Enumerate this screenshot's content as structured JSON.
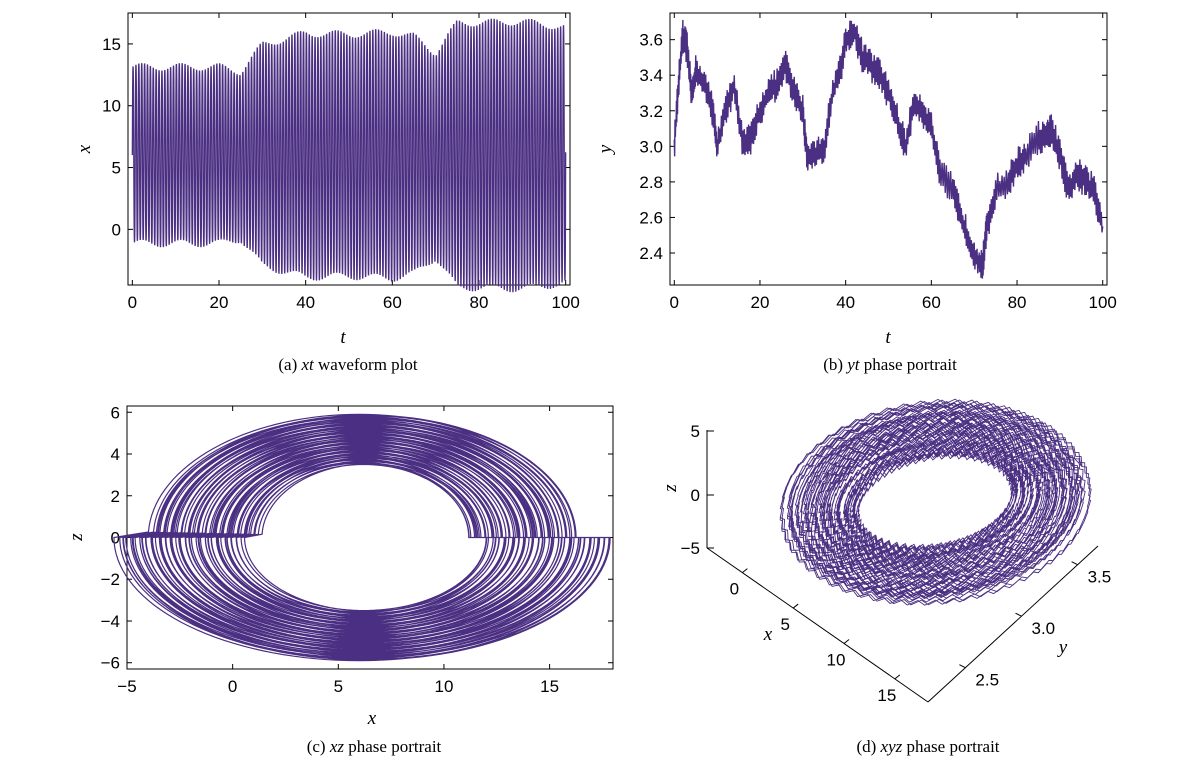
{
  "line_color": "#4b2f82",
  "chart_data": [
    {
      "id": "a",
      "type": "line",
      "caption_prefix": "(a) ",
      "caption_var": "xt",
      "caption_rest": " waveform plot",
      "xlabel": "t",
      "ylabel": "x",
      "xlim": [
        -1,
        101
      ],
      "ylim": [
        -4.5,
        17.5
      ],
      "xticks": [
        0,
        20,
        40,
        60,
        80,
        100
      ],
      "yticks": [
        0,
        5,
        10,
        15
      ],
      "xtick_labels": [
        "0",
        "20",
        "40",
        "60",
        "80",
        "100"
      ],
      "ytick_labels": [
        "0",
        "5",
        "10",
        "15"
      ],
      "signal": {
        "oscillation_center": 6,
        "envelope_t": [
          0,
          10,
          20,
          25,
          30,
          40,
          50,
          60,
          65,
          70,
          75,
          80,
          90,
          100
        ],
        "envelope_amp": [
          7.6,
          7.6,
          7.6,
          7.2,
          9.5,
          10.5,
          10.4,
          10.6,
          10.2,
          8.8,
          11.4,
          11.4,
          11.5,
          11.0
        ],
        "cycles": 150,
        "t_range": [
          0,
          100
        ]
      }
    },
    {
      "id": "b",
      "type": "line",
      "caption_prefix": "(b) ",
      "caption_var": "yt",
      "caption_rest": " phase portrait",
      "xlabel": "t",
      "ylabel": "y",
      "xlim": [
        -1,
        101
      ],
      "ylim": [
        2.22,
        3.75
      ],
      "xticks": [
        0,
        20,
        40,
        60,
        80,
        100
      ],
      "yticks": [
        2.4,
        2.6,
        2.8,
        3.0,
        3.2,
        3.4,
        3.6
      ],
      "xtick_labels": [
        "0",
        "20",
        "40",
        "60",
        "80",
        "100"
      ],
      "ytick_labels": [
        "2.4",
        "2.6",
        "2.8",
        "3.0",
        "3.2",
        "3.4",
        "3.6"
      ],
      "x": [
        0,
        1,
        2,
        3,
        4,
        5,
        7,
        9,
        10,
        12,
        14,
        16,
        18,
        20,
        22,
        24,
        26,
        28,
        30,
        31,
        33,
        35,
        37,
        39,
        40,
        42,
        44,
        46,
        48,
        50,
        52,
        54,
        56,
        58,
        60,
        62,
        65,
        67,
        69,
        71,
        72,
        73,
        75,
        78,
        80,
        82,
        85,
        87,
        88,
        90,
        92,
        94,
        96,
        98,
        100
      ],
      "y": [
        3.0,
        3.35,
        3.62,
        3.55,
        3.3,
        3.42,
        3.35,
        3.2,
        3.0,
        3.2,
        3.35,
        3.0,
        3.05,
        3.2,
        3.3,
        3.35,
        3.45,
        3.3,
        3.2,
        2.95,
        2.95,
        3.0,
        3.3,
        3.45,
        3.6,
        3.65,
        3.5,
        3.45,
        3.4,
        3.3,
        3.15,
        3.0,
        3.25,
        3.2,
        3.1,
        2.85,
        2.75,
        2.6,
        2.45,
        2.35,
        2.35,
        2.55,
        2.75,
        2.8,
        2.9,
        2.95,
        3.05,
        3.05,
        3.1,
        2.95,
        2.75,
        2.85,
        2.8,
        2.75,
        2.55
      ],
      "jitter": 0.08
    },
    {
      "id": "c",
      "type": "line",
      "caption_prefix": "(c) ",
      "caption_var": "xz",
      "caption_rest": " phase portrait",
      "xlabel": "x",
      "ylabel": "z",
      "xlim": [
        -5,
        18
      ],
      "ylim": [
        -6.3,
        6.3
      ],
      "xticks": [
        -5,
        0,
        5,
        10,
        15
      ],
      "yticks": [
        -6,
        -4,
        -2,
        0,
        2,
        4,
        6
      ],
      "xtick_labels": [
        "−5",
        "0",
        "5",
        "10",
        "15"
      ],
      "ytick_labels": [
        "−6",
        "−4",
        "−2",
        "0",
        "2",
        "4",
        "6"
      ],
      "orbit": {
        "center": [
          6.2,
          0
        ],
        "rx_range": [
          5.8,
          11.6
        ],
        "rz_range": [
          3.5,
          5.9
        ],
        "loops": 70
      }
    },
    {
      "id": "d",
      "type": "line3d",
      "caption_prefix": "(d) ",
      "caption_var": "xyz",
      "caption_rest": " phase portrait",
      "xlabel": "x",
      "ylabel": "y",
      "zlabel": "z",
      "xticks": [
        0,
        5,
        10,
        15
      ],
      "yticks": [
        2.5,
        3.0,
        3.5
      ],
      "zticks": [
        -5,
        0,
        5
      ],
      "xtick_labels": [
        "0",
        "5",
        "10",
        "15"
      ],
      "ytick_labels": [
        "2.5",
        "3.0",
        "3.5"
      ],
      "ztick_labels": [
        "−5",
        "0",
        "5"
      ],
      "loops": 60
    }
  ]
}
